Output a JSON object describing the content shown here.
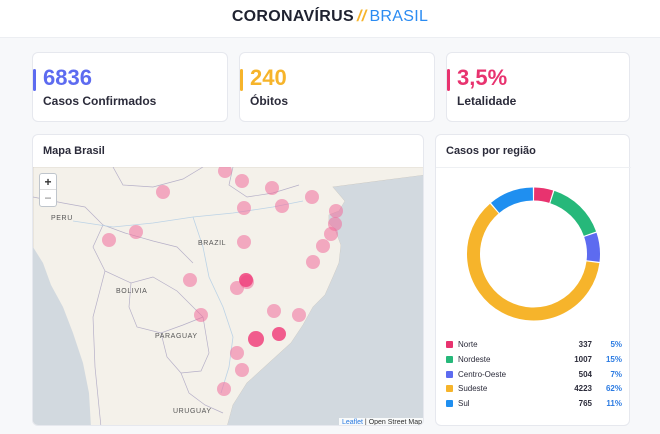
{
  "header": {
    "title_part1": "CORONAVÍRUS",
    "title_separator": "//",
    "title_part2": "BRASIL"
  },
  "stats": [
    {
      "value": "6836",
      "label": "Casos Confirmados",
      "color": "#5d6bf0"
    },
    {
      "value": "240",
      "label": "Óbitos",
      "color": "#f6b42b"
    },
    {
      "value": "3,5%",
      "label": "Letalidade",
      "color": "#e8336f"
    }
  ],
  "map": {
    "title": "Mapa Brasil",
    "zoom_in": "+",
    "zoom_out": "−",
    "attribution_leaflet": "Leaflet",
    "attribution_separator": " | ",
    "attribution_osm": "Open Street Map",
    "labels": {
      "peru": "PERU",
      "brazil": "BRAZIL",
      "bolivia": "BOLIVIA",
      "paraguay": "PARAGUAY",
      "uruguay": "URUGUAY"
    },
    "marker_color": "#f06b9a"
  },
  "regions": {
    "title": "Casos por região",
    "items": [
      {
        "name": "Norte",
        "count": "337",
        "pct": "5%",
        "value": 337,
        "color": "#e8336f"
      },
      {
        "name": "Nordeste",
        "count": "1007",
        "pct": "15%",
        "value": 1007,
        "color": "#26b87a"
      },
      {
        "name": "Centro-Oeste",
        "count": "504",
        "pct": "7%",
        "value": 504,
        "color": "#5d6bf0"
      },
      {
        "name": "Sudeste",
        "count": "4223",
        "pct": "62%",
        "value": 4223,
        "color": "#f6b42b"
      },
      {
        "name": "Sul",
        "count": "765",
        "pct": "11%",
        "value": 765,
        "color": "#1f8ff0"
      }
    ]
  }
}
